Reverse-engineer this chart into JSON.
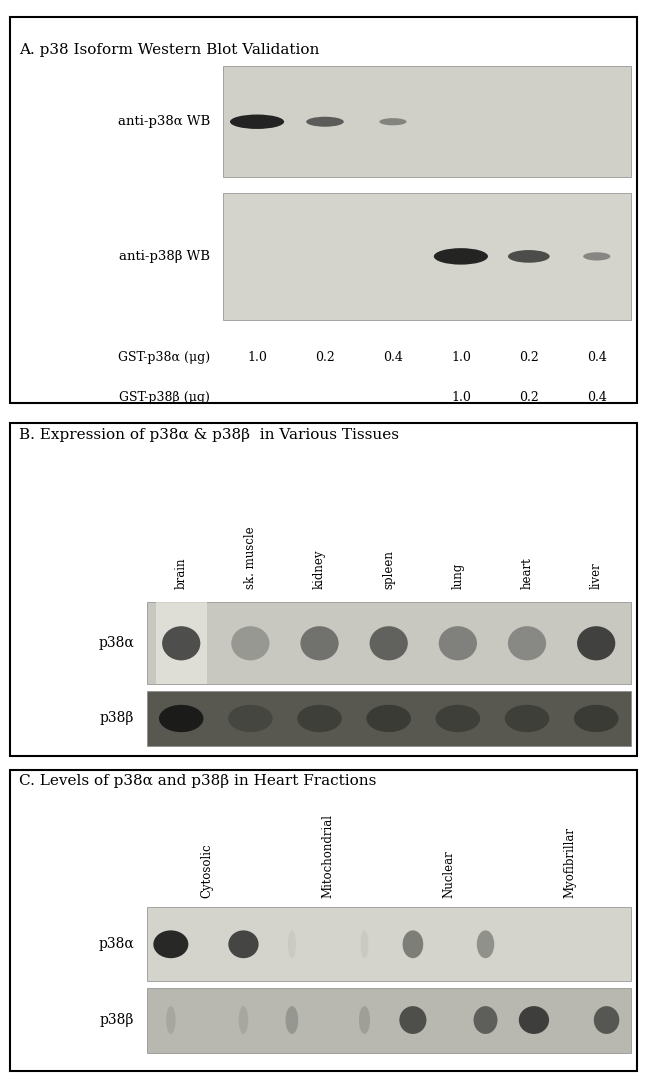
{
  "panel_A": {
    "title": "A. p38 Isoform Western Blot Validation",
    "label1": "anti-p38α WB",
    "label2": "anti-p38β WB",
    "row1_label": "GST-p38α (μg)",
    "row2_label": "GST-p38β (μg)",
    "col_labels_alpha": [
      "1.0",
      "0.2",
      "0.4"
    ],
    "col_labels_beta": [
      "1.0",
      "0.2",
      "0.4"
    ],
    "blot1_bg": "#d8d8d0",
    "blot2_bg": "#dcdcdc",
    "border_color": "#000000"
  },
  "panel_B": {
    "title": "B. Expression of p38α & p38β  in Various Tissues",
    "tissues": [
      "brain",
      "sk. muscle",
      "kidney",
      "spleen",
      "lung",
      "heart",
      "liver"
    ],
    "label1": "p38α",
    "label2": "p38β",
    "blot1_bg": "#c8c8c0",
    "blot2_bg": "#505050",
    "border_color": "#000000"
  },
  "panel_C": {
    "title": "C. Levels of p38α and p38β in Heart Fractions",
    "fractions": [
      "Cytosolic",
      "Mitochondrial",
      "Nuclear",
      "Myofibrillar"
    ],
    "label1": "p38α",
    "label2": "p38β",
    "blot1_bg": "#d8d8d0",
    "blot2_bg": "#b0b0b0",
    "border_color": "#000000"
  },
  "figure_bg": "#ffffff",
  "text_color": "#000000",
  "border_color": "#000000"
}
